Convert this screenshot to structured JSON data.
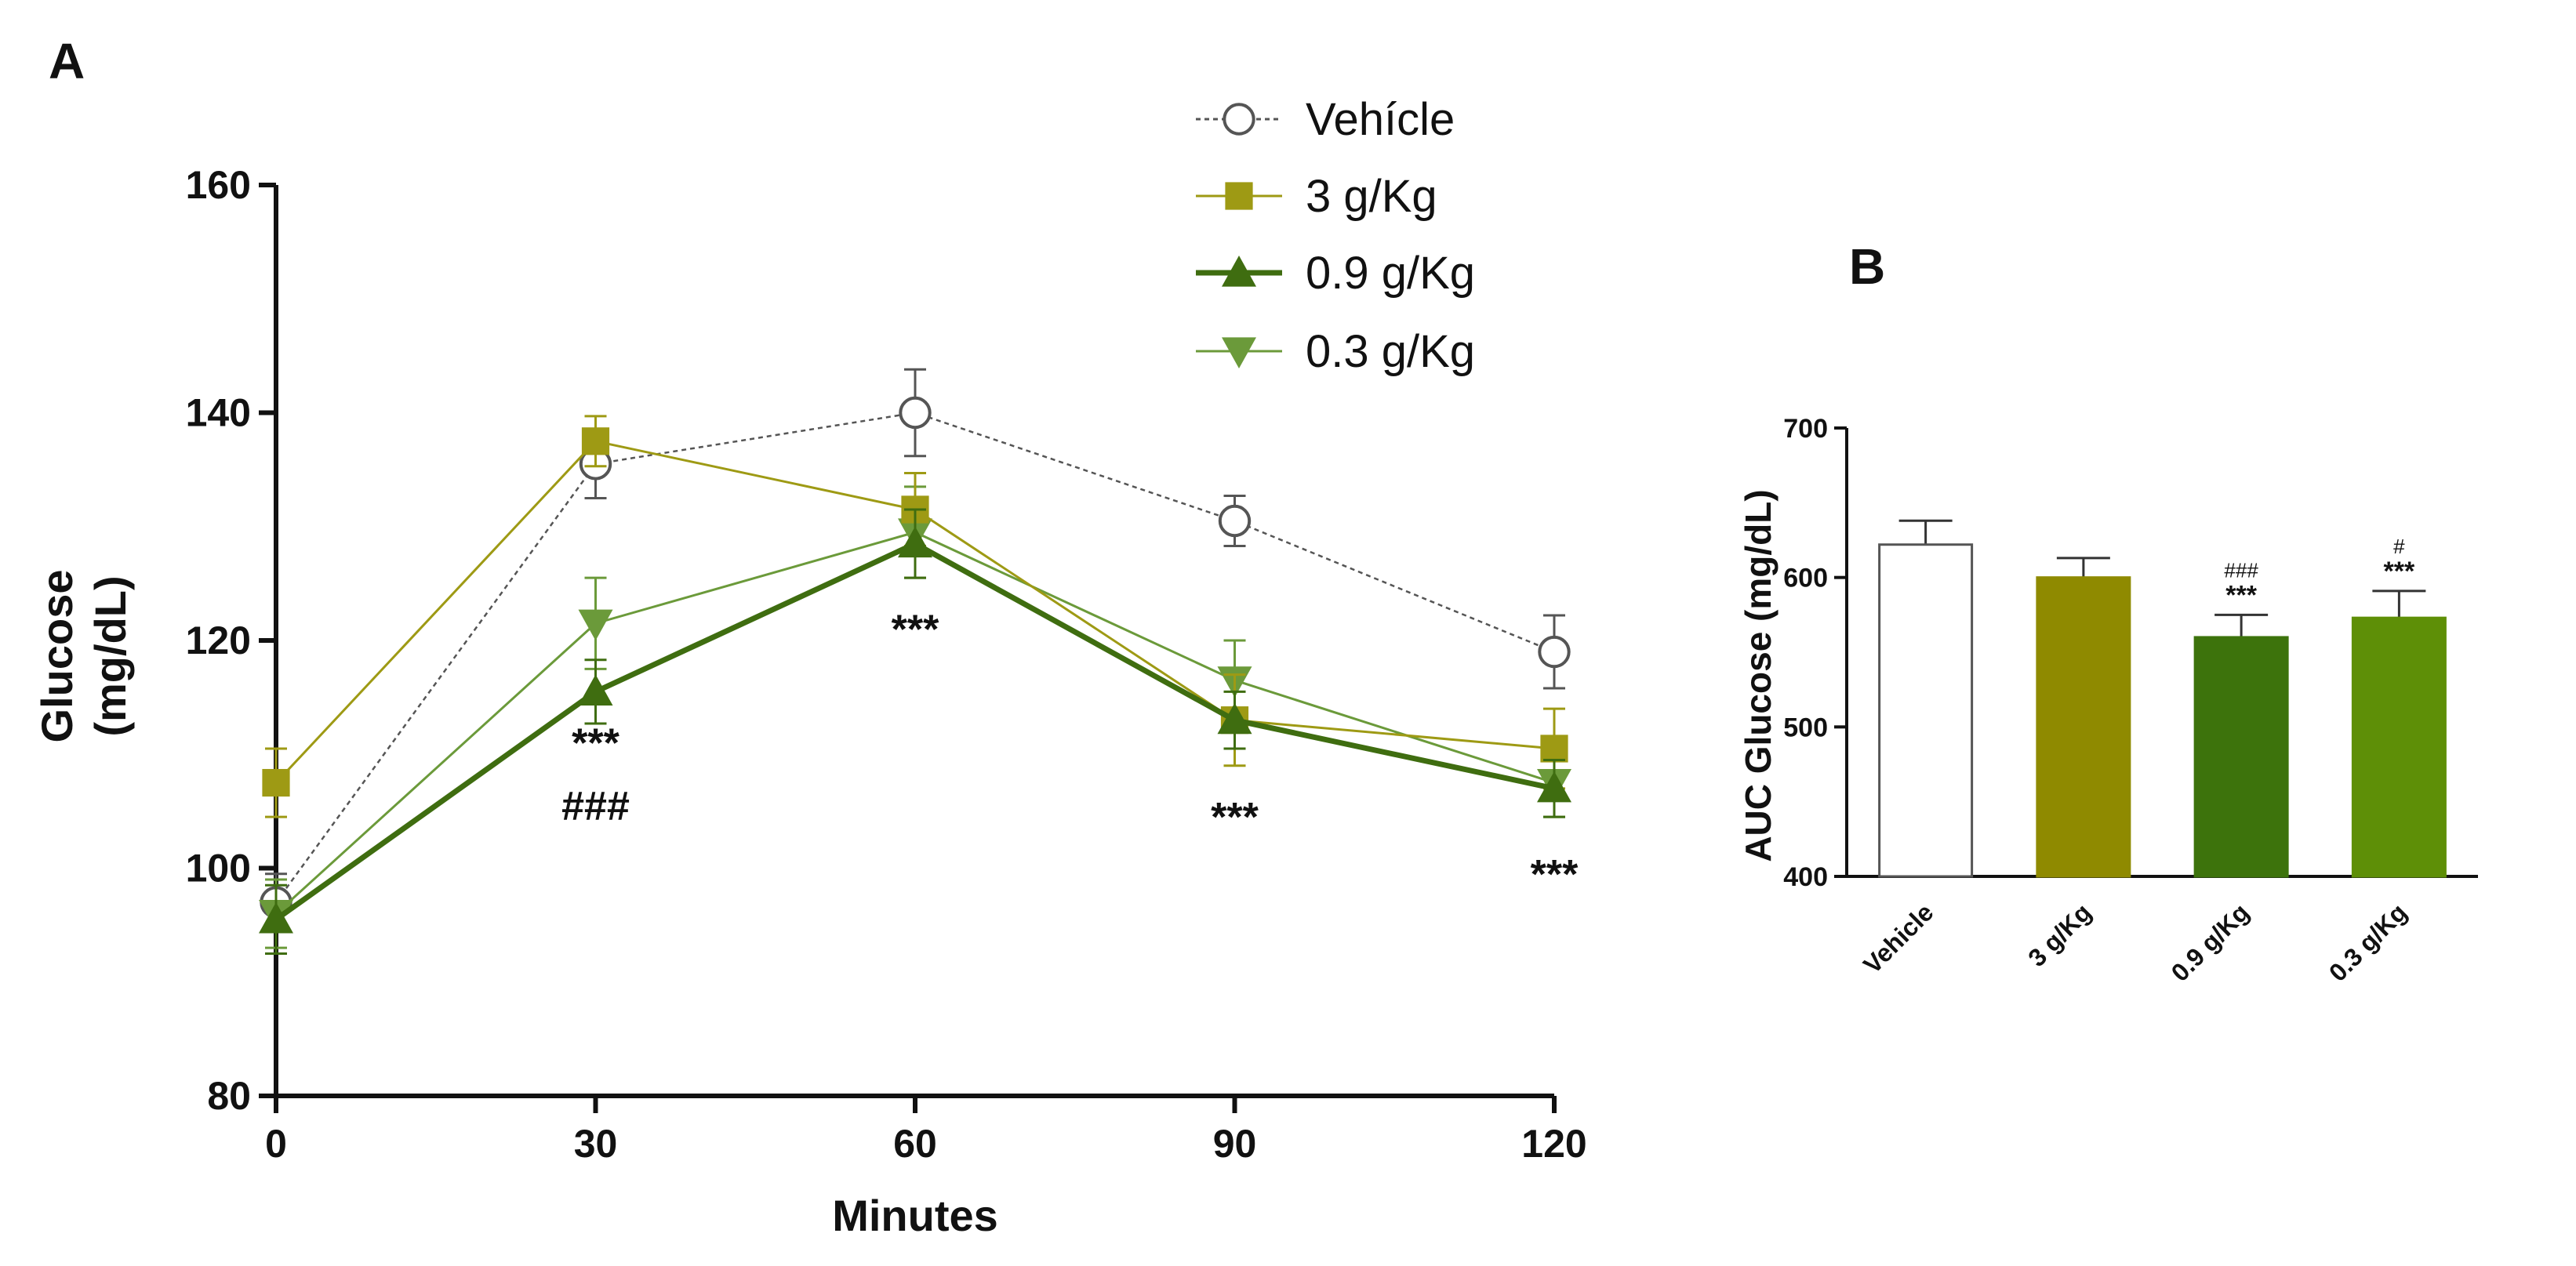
{
  "panels": {
    "a_label": "A",
    "b_label": "B"
  },
  "colors": {
    "vehicle": "#555555",
    "g3": "#9e9a14",
    "g09": "#3f6d10",
    "g03": "#6b9a3a",
    "b_vehicle": "#ffffff",
    "b_g3": "#8f8a00",
    "b_g09": "#3d730c",
    "b_g03": "#5e8f07"
  },
  "chart_data": [
    {
      "type": "line",
      "panel": "A",
      "title": "",
      "xlabel": "Minutes",
      "ylabel_lines": [
        "Glucose",
        "(mg/dL)"
      ],
      "x": [
        0,
        30,
        60,
        90,
        120
      ],
      "xlim": [
        0,
        120
      ],
      "ylim": [
        80,
        160
      ],
      "xticks": [
        0,
        30,
        60,
        90,
        120
      ],
      "yticks": [
        80,
        100,
        120,
        140,
        160
      ],
      "grid": false,
      "legend_position": "top-right",
      "series": [
        {
          "name": "Vehícle",
          "marker": "open-circle",
          "dashed": true,
          "color_key": "vehicle",
          "values": [
            97,
            135.5,
            140,
            130.5,
            119
          ],
          "errors": [
            2.5,
            3,
            3.8,
            2.2,
            3.2
          ]
        },
        {
          "name": "3 g/Kg",
          "marker": "square",
          "dashed": false,
          "color_key": "g3",
          "values": [
            107.5,
            137.5,
            131.5,
            113,
            110.5
          ],
          "errors": [
            3,
            2.2,
            3.2,
            4,
            3.5
          ]
        },
        {
          "name": "0.9 g/Kg",
          "marker": "triangle-up",
          "dashed": false,
          "color_key": "g09",
          "values": [
            95.5,
            115.5,
            128.5,
            113,
            107
          ],
          "errors": [
            3,
            2.8,
            3,
            2.5,
            2.5
          ]
        },
        {
          "name": "0.3 g/Kg",
          "marker": "triangle-down",
          "dashed": false,
          "color_key": "g03",
          "values": [
            96,
            121.5,
            129.5,
            116.5,
            107.5
          ],
          "errors": [
            3,
            4,
            4,
            3.5,
            3
          ]
        }
      ],
      "annotations": [
        {
          "x": 30,
          "text": "***",
          "y_below": 111
        },
        {
          "x": 30,
          "text": "###",
          "y_below": 105.5
        },
        {
          "x": 60,
          "text": "***",
          "y_below": 121
        },
        {
          "x": 90,
          "text": "***",
          "y_below": 104.5
        },
        {
          "x": 120,
          "text": "***",
          "y_below": 99.5
        }
      ]
    },
    {
      "type": "bar",
      "panel": "B",
      "title": "",
      "xlabel": "",
      "ylabel": "AUC Glucose (mg/dL)",
      "categories": [
        "Vehicle",
        "3 g/Kg",
        "0.9 g/Kg",
        "0.3 g/Kg"
      ],
      "values": [
        622,
        600,
        560,
        573
      ],
      "errors": [
        16,
        13,
        15,
        18
      ],
      "ylim": [
        400,
        700
      ],
      "yticks": [
        400,
        500,
        600,
        700
      ],
      "bar_color_keys": [
        "b_vehicle",
        "b_g3",
        "b_g09",
        "b_g03"
      ],
      "annotations": [
        {
          "bar": 2,
          "lines": [
            "###",
            "***"
          ]
        },
        {
          "bar": 3,
          "lines": [
            "#",
            "***"
          ]
        }
      ]
    }
  ]
}
